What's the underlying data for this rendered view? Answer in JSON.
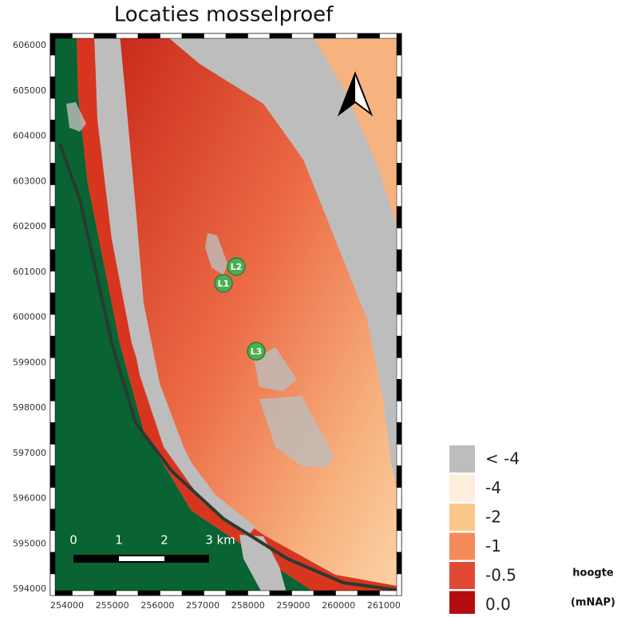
{
  "title": "Locaties mosselproef",
  "map": {
    "y_labels": [
      "606000",
      "605000",
      "604000",
      "603000",
      "602000",
      "601000",
      "600000",
      "599000",
      "598000",
      "597000",
      "596000",
      "595000",
      "594000"
    ],
    "x_labels": [
      "254000",
      "255000",
      "256000",
      "257000",
      "258000",
      "259000",
      "260000",
      "261000"
    ],
    "locations": [
      {
        "label": "L1"
      },
      {
        "label": "L2"
      },
      {
        "label": "L3"
      }
    ],
    "scale_bar": {
      "labels": [
        "0",
        "1",
        "2",
        "3 km"
      ]
    }
  },
  "legend": {
    "items": [
      {
        "label": "< -4",
        "color": "#bdbdbd"
      },
      {
        "label": "-4",
        "color": "#fdeedd"
      },
      {
        "label": "-2",
        "color": "#fbc68c"
      },
      {
        "label": "-1",
        "color": "#f58a5a"
      },
      {
        "label": "-0.5",
        "color": "#e04a35"
      },
      {
        "label": "0.0",
        "color": "#b50d0d"
      }
    ],
    "title": [
      "hoogte",
      "(mNAP)"
    ]
  }
}
